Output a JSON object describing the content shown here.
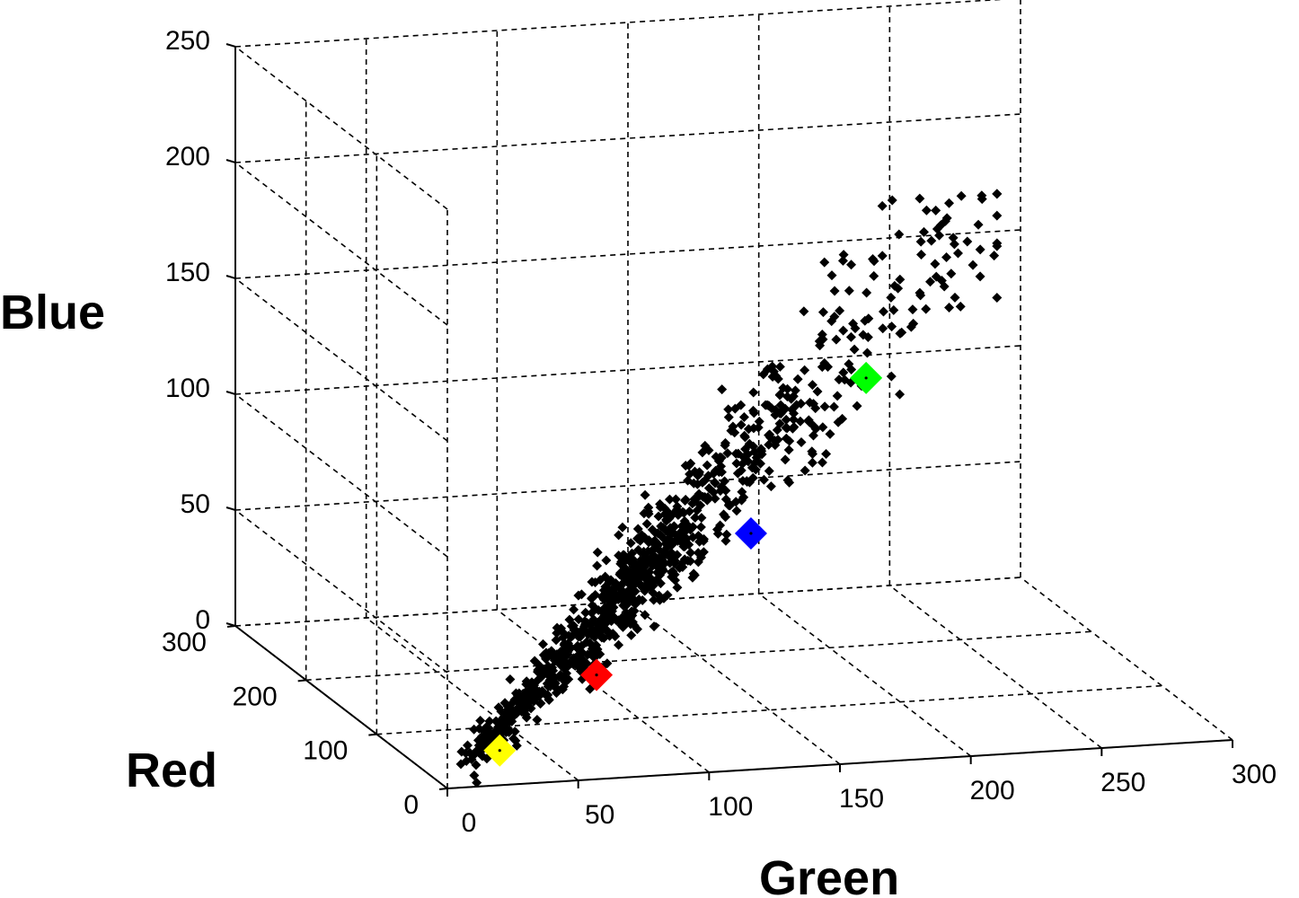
{
  "chart_data": {
    "type": "scatter",
    "dimensions": 3,
    "xlabel": "Red",
    "ylabel": "Green",
    "zlabel": "Blue",
    "xlim": [
      0,
      300
    ],
    "ylim": [
      0,
      300
    ],
    "zlim": [
      0,
      250
    ],
    "x_ticks": [
      "0",
      "100",
      "200",
      "300"
    ],
    "y_ticks": [
      "0",
      "50",
      "100",
      "150",
      "200",
      "250",
      "300"
    ],
    "z_ticks": [
      "0",
      "50",
      "100",
      "150",
      "200",
      "250"
    ],
    "grid": true,
    "marker": "black diamond",
    "series": [
      {
        "color": "#000000",
        "point_count": "approx. 1000",
        "trend": "points run diagonally from near (0,0,0) to about Green 205, Blue 240"
      }
    ],
    "highlighted_points": [
      {
        "color": "#ffff00",
        "red": 0,
        "green": 20,
        "blue": 15
      },
      {
        "color": "#ff0000",
        "red": 0,
        "green": 57,
        "blue": 45
      },
      {
        "color": "#0000ff",
        "red": 0,
        "green": 116,
        "blue": 102
      },
      {
        "color": "#00ff00",
        "red": 0,
        "green": 160,
        "blue": 166
      }
    ]
  }
}
